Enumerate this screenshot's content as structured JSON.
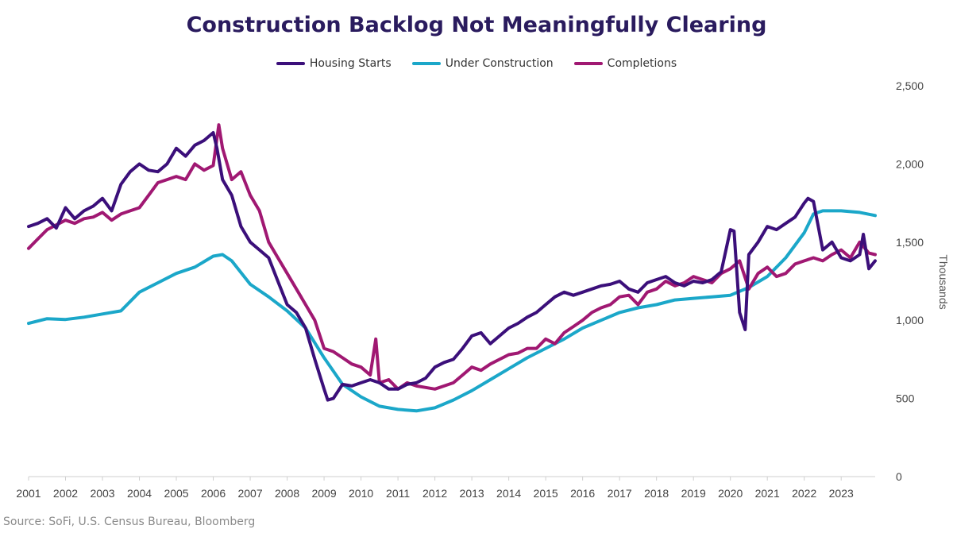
{
  "page": {
    "title": "Construction Backlog Not Meaningfully Clearing",
    "source": "Source: SoFi, U.S. Census Bureau, Bloomberg"
  },
  "chart_data": {
    "type": "line",
    "title": "Construction Backlog Not Meaningfully Clearing",
    "xlabel": "",
    "ylabel": "Thousands",
    "xlim": [
      2001,
      2023.92
    ],
    "ylim": [
      0,
      2500
    ],
    "y_ticks": [
      0,
      500,
      1000,
      1500,
      2000,
      2500
    ],
    "y_tick_labels": [
      "0",
      "500",
      "1,000",
      "1,500",
      "2,000",
      "2,500"
    ],
    "x_ticks": [
      2001,
      2002,
      2003,
      2004,
      2005,
      2006,
      2007,
      2008,
      2009,
      2010,
      2011,
      2012,
      2013,
      2014,
      2015,
      2016,
      2017,
      2018,
      2019,
      2020,
      2021,
      2022,
      2023
    ],
    "x_tick_labels": [
      "2001",
      "2002",
      "2003",
      "2004",
      "2005",
      "2006",
      "2007",
      "2008",
      "2009",
      "2010",
      "2011",
      "2012",
      "2013",
      "2014",
      "2015",
      "2016",
      "2017",
      "2018",
      "2019",
      "2020",
      "2021",
      "2022",
      "2023"
    ],
    "legend_position": "top-center",
    "grid": false,
    "series": [
      {
        "name": "Housing Starts",
        "color": "#3b0f7a",
        "x": [
          2001.0,
          2001.25,
          2001.5,
          2001.75,
          2002.0,
          2002.25,
          2002.5,
          2002.75,
          2003.0,
          2003.25,
          2003.5,
          2003.75,
          2004.0,
          2004.25,
          2004.5,
          2004.75,
          2005.0,
          2005.25,
          2005.5,
          2005.75,
          2006.0,
          2006.1,
          2006.25,
          2006.5,
          2006.75,
          2007.0,
          2007.25,
          2007.5,
          2007.75,
          2008.0,
          2008.25,
          2008.5,
          2008.75,
          2009.0,
          2009.1,
          2009.25,
          2009.5,
          2009.75,
          2010.0,
          2010.25,
          2010.5,
          2010.75,
          2011.0,
          2011.25,
          2011.5,
          2011.75,
          2012.0,
          2012.25,
          2012.5,
          2012.75,
          2013.0,
          2013.25,
          2013.5,
          2013.75,
          2014.0,
          2014.25,
          2014.5,
          2014.75,
          2015.0,
          2015.25,
          2015.5,
          2015.75,
          2016.0,
          2016.25,
          2016.5,
          2016.75,
          2017.0,
          2017.25,
          2017.5,
          2017.75,
          2018.0,
          2018.25,
          2018.5,
          2018.75,
          2019.0,
          2019.25,
          2019.5,
          2019.75,
          2020.0,
          2020.1,
          2020.25,
          2020.4,
          2020.5,
          2020.75,
          2021.0,
          2021.25,
          2021.5,
          2021.75,
          2022.0,
          2022.1,
          2022.25,
          2022.5,
          2022.75,
          2023.0,
          2023.25,
          2023.5,
          2023.6,
          2023.75,
          2023.92
        ],
        "values": [
          1600,
          1620,
          1650,
          1590,
          1720,
          1650,
          1700,
          1730,
          1780,
          1700,
          1870,
          1950,
          2000,
          1960,
          1950,
          2000,
          2100,
          2050,
          2120,
          2150,
          2200,
          2100,
          1900,
          1800,
          1600,
          1500,
          1450,
          1400,
          1250,
          1100,
          1050,
          950,
          750,
          560,
          490,
          500,
          590,
          580,
          600,
          620,
          600,
          560,
          560,
          590,
          600,
          630,
          700,
          730,
          750,
          820,
          900,
          920,
          850,
          900,
          950,
          980,
          1020,
          1050,
          1100,
          1150,
          1180,
          1160,
          1180,
          1200,
          1220,
          1230,
          1250,
          1200,
          1180,
          1240,
          1260,
          1280,
          1240,
          1220,
          1250,
          1240,
          1260,
          1310,
          1580,
          1570,
          1050,
          940,
          1420,
          1500,
          1600,
          1580,
          1620,
          1660,
          1750,
          1780,
          1760,
          1450,
          1500,
          1400,
          1380,
          1420,
          1550,
          1330,
          1380
        ],
        "line_width": 4
      },
      {
        "name": "Under Construction",
        "color": "#1ba7c9",
        "x": [
          2001.0,
          2001.5,
          2002.0,
          2002.5,
          2003.0,
          2003.5,
          2004.0,
          2004.5,
          2005.0,
          2005.5,
          2006.0,
          2006.25,
          2006.5,
          2007.0,
          2007.5,
          2008.0,
          2008.5,
          2009.0,
          2009.5,
          2010.0,
          2010.5,
          2011.0,
          2011.5,
          2012.0,
          2012.5,
          2013.0,
          2013.5,
          2014.0,
          2014.5,
          2015.0,
          2015.5,
          2016.0,
          2016.5,
          2017.0,
          2017.5,
          2018.0,
          2018.5,
          2019.0,
          2019.5,
          2020.0,
          2020.5,
          2021.0,
          2021.5,
          2022.0,
          2022.25,
          2022.5,
          2023.0,
          2023.5,
          2023.92
        ],
        "values": [
          980,
          1010,
          1005,
          1020,
          1040,
          1060,
          1180,
          1240,
          1300,
          1340,
          1410,
          1420,
          1380,
          1230,
          1150,
          1060,
          950,
          760,
          590,
          510,
          450,
          430,
          420,
          440,
          490,
          550,
          620,
          690,
          760,
          820,
          880,
          950,
          1000,
          1050,
          1080,
          1100,
          1130,
          1140,
          1150,
          1160,
          1210,
          1280,
          1400,
          1560,
          1680,
          1700,
          1700,
          1690,
          1670
        ],
        "line_width": 4
      },
      {
        "name": "Completions",
        "color": "#a01872",
        "x": [
          2001.0,
          2001.25,
          2001.5,
          2001.75,
          2002.0,
          2002.25,
          2002.5,
          2002.75,
          2003.0,
          2003.25,
          2003.5,
          2003.75,
          2004.0,
          2004.25,
          2004.5,
          2004.75,
          2005.0,
          2005.25,
          2005.5,
          2005.75,
          2006.0,
          2006.15,
          2006.25,
          2006.5,
          2006.75,
          2007.0,
          2007.25,
          2007.5,
          2007.75,
          2008.0,
          2008.25,
          2008.5,
          2008.75,
          2009.0,
          2009.25,
          2009.5,
          2009.75,
          2010.0,
          2010.25,
          2010.4,
          2010.5,
          2010.75,
          2011.0,
          2011.25,
          2011.5,
          2011.75,
          2012.0,
          2012.25,
          2012.5,
          2012.75,
          2013.0,
          2013.25,
          2013.5,
          2013.75,
          2014.0,
          2014.25,
          2014.5,
          2014.75,
          2015.0,
          2015.25,
          2015.5,
          2015.75,
          2016.0,
          2016.25,
          2016.5,
          2016.75,
          2017.0,
          2017.25,
          2017.5,
          2017.75,
          2018.0,
          2018.25,
          2018.5,
          2018.75,
          2019.0,
          2019.25,
          2019.5,
          2019.75,
          2020.0,
          2020.25,
          2020.5,
          2020.75,
          2021.0,
          2021.25,
          2021.5,
          2021.75,
          2022.0,
          2022.25,
          2022.5,
          2022.75,
          2023.0,
          2023.25,
          2023.5,
          2023.75,
          2023.92
        ],
        "values": [
          1460,
          1520,
          1580,
          1610,
          1640,
          1620,
          1650,
          1660,
          1690,
          1640,
          1680,
          1700,
          1720,
          1800,
          1880,
          1900,
          1920,
          1900,
          2000,
          1960,
          1990,
          2250,
          2100,
          1900,
          1950,
          1800,
          1700,
          1500,
          1400,
          1300,
          1200,
          1100,
          1000,
          820,
          800,
          760,
          720,
          700,
          650,
          880,
          600,
          620,
          560,
          600,
          580,
          570,
          560,
          580,
          600,
          650,
          700,
          680,
          720,
          750,
          780,
          790,
          820,
          820,
          880,
          850,
          920,
          960,
          1000,
          1050,
          1080,
          1100,
          1150,
          1160,
          1100,
          1180,
          1200,
          1250,
          1220,
          1240,
          1280,
          1260,
          1240,
          1300,
          1330,
          1380,
          1200,
          1300,
          1340,
          1280,
          1300,
          1360,
          1380,
          1400,
          1380,
          1420,
          1450,
          1400,
          1500,
          1430,
          1420
        ],
        "line_width": 4
      }
    ]
  }
}
